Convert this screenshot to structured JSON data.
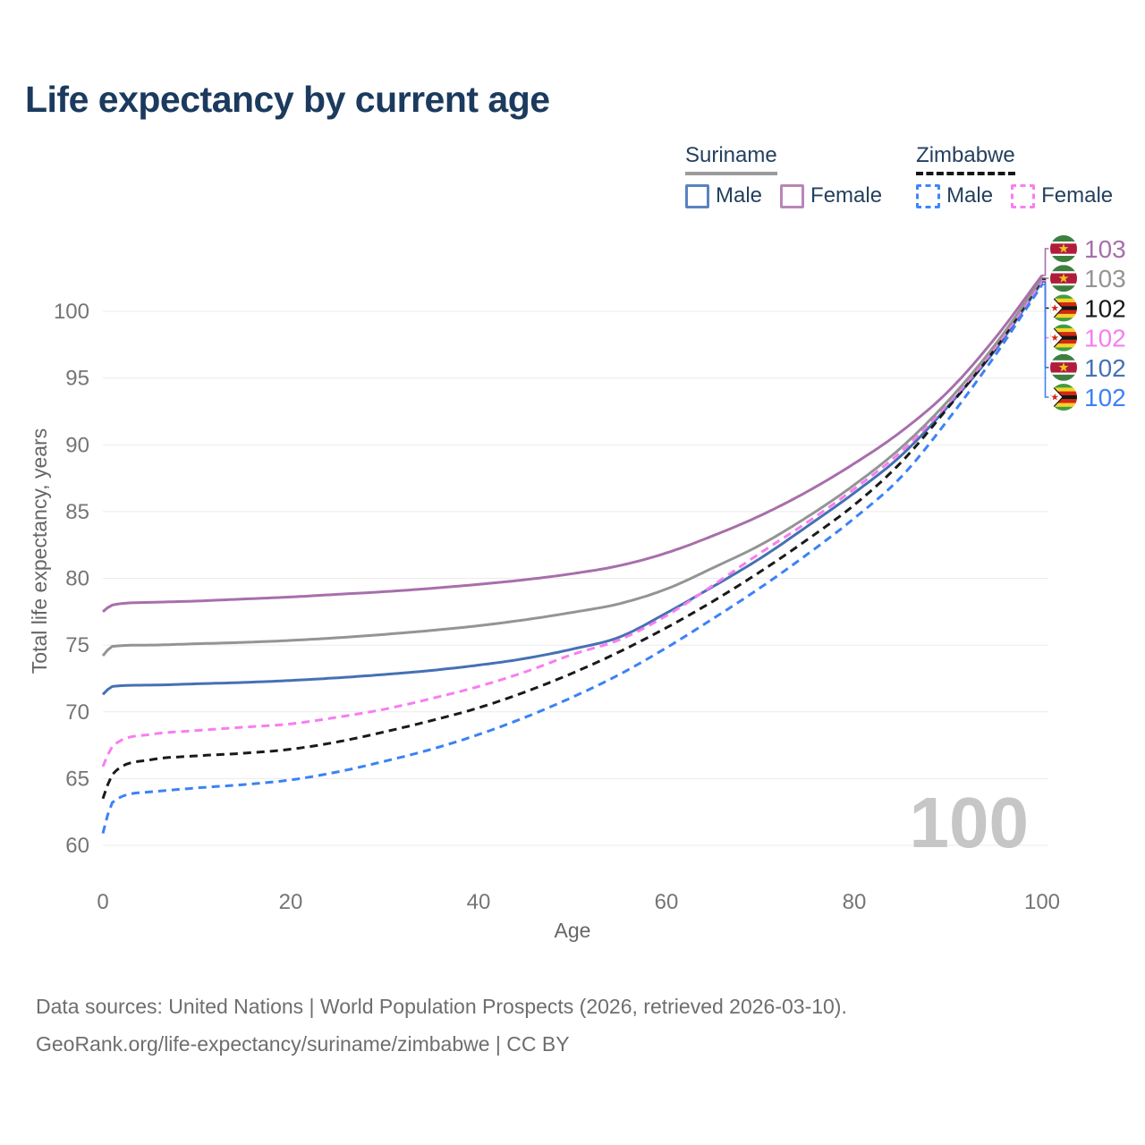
{
  "title": "Life expectancy by current age",
  "legend": {
    "groups": [
      {
        "name": "Suriname",
        "line_style": "solid",
        "line_color": "#9b9b9b",
        "items": [
          {
            "label": "Male",
            "color": "#5b82c0",
            "dashed": false
          },
          {
            "label": "Female",
            "color": "#b886b8",
            "dashed": false
          }
        ]
      },
      {
        "name": "Zimbabwe",
        "line_style": "dashed",
        "line_color": "#151515",
        "items": [
          {
            "label": "Male",
            "color": "#3e86f7",
            "dashed": true
          },
          {
            "label": "Female",
            "color": "#f97ef0",
            "dashed": true
          }
        ]
      }
    ]
  },
  "chart_data": {
    "type": "line",
    "title": "Life expectancy by current age",
    "xlabel": "Age",
    "ylabel": "Total life expectancy, years",
    "xlim": [
      0,
      100
    ],
    "ylim": [
      60,
      103.5
    ],
    "x_ticks": [
      0,
      20,
      40,
      60,
      80,
      100
    ],
    "y_ticks": [
      60,
      65,
      70,
      75,
      80,
      85,
      90,
      95,
      100
    ],
    "grid": "horizontal-only",
    "legend_position": "top-right",
    "watermark": "100",
    "ages": [
      0,
      1,
      5,
      10,
      15,
      20,
      25,
      30,
      35,
      40,
      45,
      50,
      55,
      60,
      65,
      70,
      75,
      80,
      85,
      90,
      95,
      100
    ],
    "series": [
      {
        "name": "Suriname Female",
        "country": "Suriname",
        "sex": "Female",
        "color": "#a76fab",
        "dashed": false,
        "flag": "suriname",
        "end_label": "103",
        "values": [
          77.5,
          78.0,
          78.2,
          78.3,
          78.45,
          78.6,
          78.8,
          79.0,
          79.25,
          79.55,
          79.9,
          80.35,
          80.95,
          81.9,
          83.2,
          84.7,
          86.5,
          88.6,
          91.0,
          94.0,
          98.0,
          102.7
        ]
      },
      {
        "name": "Suriname Both sexes",
        "country": "Suriname",
        "sex": "Both",
        "color": "#949494",
        "dashed": false,
        "flag": "suriname",
        "end_label": "103",
        "values": [
          74.2,
          74.9,
          75.0,
          75.1,
          75.2,
          75.35,
          75.55,
          75.8,
          76.1,
          76.45,
          76.9,
          77.45,
          78.1,
          79.2,
          80.8,
          82.5,
          84.6,
          87.0,
          89.8,
          93.3,
          97.5,
          102.5
        ]
      },
      {
        "name": "Zimbabwe Both sexes",
        "country": "Zimbabwe",
        "sex": "Both",
        "color": "#1a1a1a",
        "dashed": true,
        "flag": "zimbabwe",
        "end_label": "102",
        "values": [
          63.5,
          65.3,
          66.4,
          66.7,
          66.9,
          67.2,
          67.75,
          68.5,
          69.35,
          70.3,
          71.5,
          72.9,
          74.5,
          76.3,
          78.3,
          80.5,
          82.9,
          85.5,
          88.7,
          92.8,
          97.2,
          102.4
        ]
      },
      {
        "name": "Zimbabwe Female",
        "country": "Zimbabwe",
        "sex": "Female",
        "color": "#f87df0",
        "dashed": true,
        "flag": "zimbabwe",
        "end_label": "102",
        "values": [
          65.9,
          67.4,
          68.3,
          68.6,
          68.85,
          69.1,
          69.6,
          70.2,
          71.0,
          71.9,
          73.0,
          74.3,
          75.4,
          77.2,
          79.5,
          81.9,
          84.2,
          86.7,
          89.5,
          93.1,
          97.3,
          102.3
        ]
      },
      {
        "name": "Suriname Male",
        "country": "Suriname",
        "sex": "Male",
        "color": "#4571b4",
        "dashed": false,
        "flag": "suriname",
        "end_label": "102",
        "values": [
          71.3,
          71.9,
          72.0,
          72.1,
          72.2,
          72.35,
          72.55,
          72.8,
          73.1,
          73.5,
          74.0,
          74.7,
          75.6,
          77.4,
          79.4,
          81.5,
          83.9,
          86.4,
          89.2,
          92.9,
          97.1,
          102.2
        ]
      },
      {
        "name": "Zimbabwe Male",
        "country": "Zimbabwe",
        "sex": "Male",
        "color": "#3b82f5",
        "dashed": true,
        "flag": "zimbabwe",
        "end_label": "102",
        "values": [
          60.9,
          63.2,
          64.0,
          64.3,
          64.55,
          64.9,
          65.5,
          66.3,
          67.2,
          68.3,
          69.6,
          71.1,
          72.8,
          74.8,
          77.0,
          79.3,
          81.8,
          84.5,
          87.6,
          91.9,
          96.7,
          102.0
        ]
      }
    ]
  },
  "footer": {
    "line1": "Data sources: United Nations | World Population Prospects (2026, retrieved 2026-03-10).",
    "line2": "GeoRank.org/life-expectancy/suriname/zimbabwe | CC BY"
  }
}
